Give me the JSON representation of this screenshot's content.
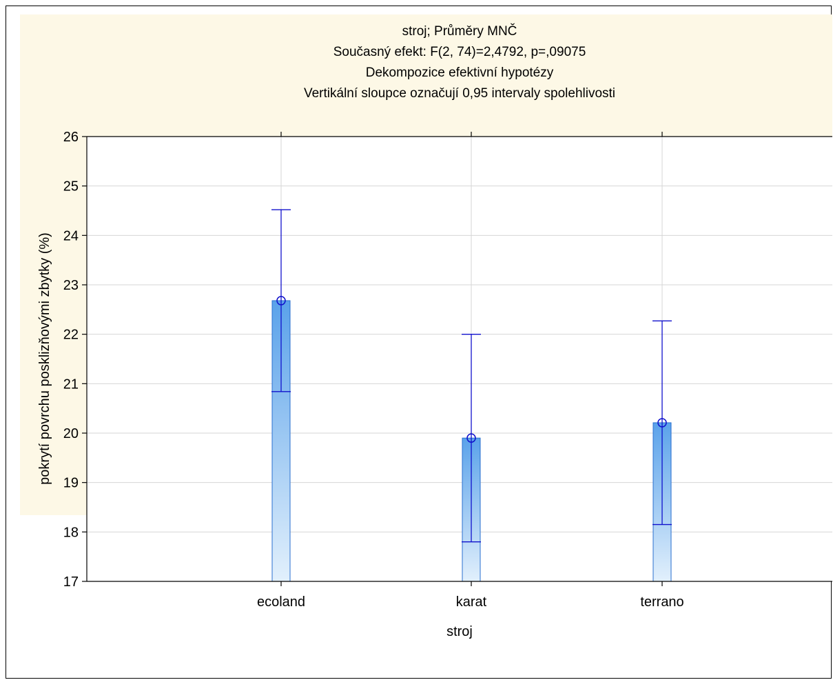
{
  "chart_data": {
    "type": "bar",
    "title_lines": [
      "stroj; Průměry MNČ",
      "Současný efekt: F(2, 74)=2,4792, p=,09075",
      "Dekompozice efektivní hypotézy",
      "Vertikální sloupce označují 0,95 intervaly spolehlivosti"
    ],
    "xlabel": "stroj",
    "ylabel": "pokrytí povrchu posklizňovými zbytky (%)",
    "categories": [
      "ecoland",
      "karat",
      "terrano"
    ],
    "means": [
      22.68,
      19.9,
      20.21
    ],
    "ci_lower": [
      20.84,
      17.8,
      18.15
    ],
    "ci_upper": [
      24.52,
      22.0,
      22.27
    ],
    "ylim": [
      17,
      26
    ],
    "yticks": [
      "17",
      "18",
      "19",
      "20",
      "21",
      "22",
      "23",
      "24",
      "25",
      "26"
    ],
    "grid": true,
    "colors": {
      "panel_background": "#fdf8e6",
      "bar_top": "#5aa2ea",
      "bar_bottom": "#e2f0fc",
      "bar_edge": "#2a6fcf",
      "error_bar": "#1010cc",
      "grid": "#d6d6d6"
    }
  }
}
